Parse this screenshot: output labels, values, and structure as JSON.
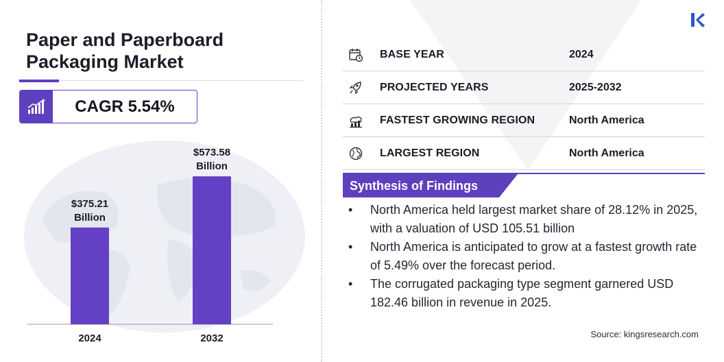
{
  "title": "Paper and Paperboard Packaging Market",
  "cagr": "CAGR 5.54%",
  "colors": {
    "accent": "#5e3fbe",
    "bar": "#6440c4"
  },
  "chart_data": {
    "type": "bar",
    "categories": [
      "2024",
      "2032"
    ],
    "values": [
      375.21,
      573.58
    ],
    "data_labels": [
      [
        "$375.21",
        "Billion"
      ],
      [
        "$573.58",
        "Billion"
      ]
    ],
    "title": "",
    "xlabel": "",
    "ylabel": "",
    "ylim": [
      0,
      630
    ],
    "grid": false,
    "legend": "none"
  },
  "info_table": [
    {
      "icon": "calendar-icon",
      "label": "BASE YEAR",
      "value": "2024"
    },
    {
      "icon": "rocket-icon",
      "label": "PROJECTED YEARS",
      "value": "2025-2032"
    },
    {
      "icon": "growth-region-icon",
      "label": "FASTEST GROWING REGION",
      "value": "North America"
    },
    {
      "icon": "globe-icon",
      "label": "LARGEST REGION",
      "value": "North America"
    }
  ],
  "synthesis": {
    "title": "Synthesis of Findings",
    "bullet": "•",
    "items": [
      "North America held largest market share of 28.12% in 2025, with a valuation of USD 105.51 billion",
      "North America is anticipated to grow at a fastest growth rate of 5.49% over the forecast period.",
      "The corrugated packaging type segment garnered USD 182.46 billion in revenue in 2025."
    ]
  },
  "source": "Source: kingsresearch.com",
  "logo_text": "K"
}
